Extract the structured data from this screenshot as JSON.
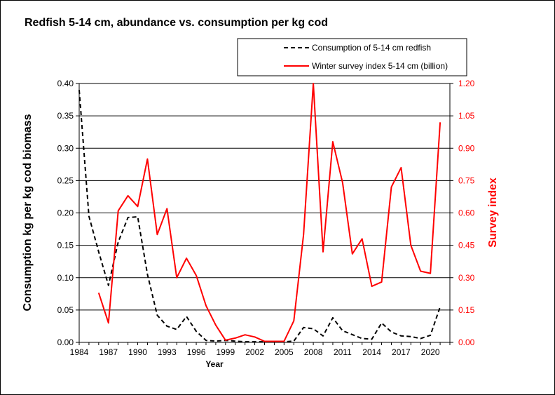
{
  "chart_data": {
    "type": "line",
    "title": "Redfish 5-14 cm, abundance vs. consumption per kg cod",
    "xlabel": "Year",
    "ylabel": "Consumption kg per kg cod biomass",
    "y2label": "Survey index",
    "xlim": [
      1984,
      2022
    ],
    "ylim": [
      0,
      0.4
    ],
    "y2lim": [
      0,
      1.2
    ],
    "x_ticks": [
      "1984",
      "1987",
      "1990",
      "1993",
      "1996",
      "1999",
      "2002",
      "2005",
      "2008",
      "2011",
      "2014",
      "2017",
      "2020"
    ],
    "y_ticks": [
      "0.00",
      "0.05",
      "0.10",
      "0.15",
      "0.20",
      "0.25",
      "0.30",
      "0.35",
      "0.40"
    ],
    "y2_ticks": [
      "0.00",
      "0.15",
      "0.30",
      "0.45",
      "0.60",
      "0.75",
      "0.90",
      "1.05",
      "1.20"
    ],
    "grid": "horizontal",
    "legend_position": "top-right",
    "colors": {
      "consumption": "#000000",
      "survey": "#ff0000",
      "right_axis": "#ff0000"
    },
    "series": [
      {
        "name": "Consumption of 5-14 cm redfish",
        "axis": "left",
        "style": "dashed",
        "x": [
          1984,
          1985,
          1986,
          1987,
          1988,
          1989,
          1990,
          1991,
          1992,
          1993,
          1994,
          1995,
          1996,
          1997,
          1998,
          1999,
          2000,
          2001,
          2002,
          2003,
          2004,
          2005,
          2006,
          2007,
          2008,
          2009,
          2010,
          2011,
          2012,
          2013,
          2014,
          2015,
          2016,
          2017,
          2018,
          2019,
          2020,
          2021
        ],
        "values": [
          0.39,
          0.195,
          0.14,
          0.088,
          0.155,
          0.193,
          0.194,
          0.105,
          0.042,
          0.025,
          0.02,
          0.04,
          0.017,
          0.003,
          0.002,
          0.003,
          0.002,
          0.001,
          0.001,
          0.001,
          0.001,
          0.001,
          0.002,
          0.023,
          0.021,
          0.01,
          0.038,
          0.018,
          0.012,
          0.006,
          0.005,
          0.03,
          0.016,
          0.01,
          0.009,
          0.006,
          0.011,
          0.055
        ]
      },
      {
        "name": "Winter survey index 5-14 cm (billion)",
        "axis": "right",
        "style": "solid",
        "x": [
          1986,
          1987,
          1988,
          1989,
          1990,
          1991,
          1992,
          1993,
          1994,
          1995,
          1996,
          1997,
          1998,
          1999,
          2000,
          2001,
          2002,
          2003,
          2004,
          2005,
          2006,
          2007,
          2008,
          2009,
          2010,
          2011,
          2012,
          2013,
          2014,
          2015,
          2016,
          2017,
          2018,
          2019,
          2020,
          2021
        ],
        "values": [
          0.23,
          0.09,
          0.61,
          0.68,
          0.63,
          0.85,
          0.5,
          0.62,
          0.3,
          0.39,
          0.31,
          0.17,
          0.08,
          0.01,
          0.02,
          0.035,
          0.025,
          0.005,
          0.005,
          0.005,
          0.1,
          0.5,
          1.2,
          0.42,
          0.93,
          0.74,
          0.41,
          0.48,
          0.26,
          0.28,
          0.72,
          0.81,
          0.45,
          0.33,
          0.32,
          1.02
        ]
      }
    ]
  }
}
